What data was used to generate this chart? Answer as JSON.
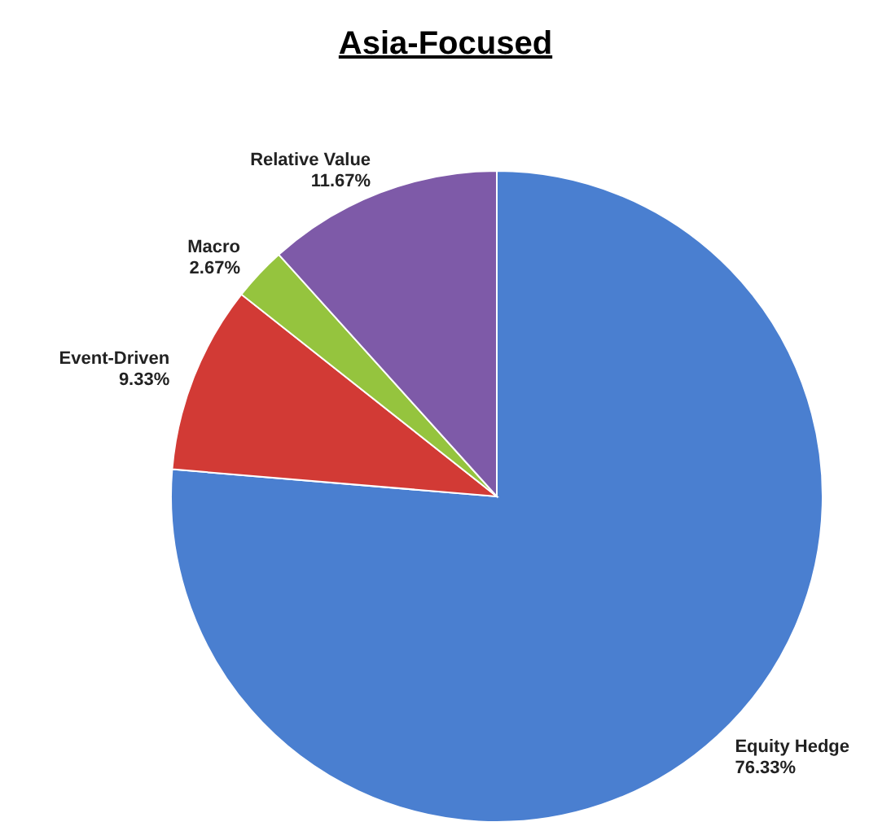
{
  "chart_data": {
    "type": "pie",
    "title": "Asia-Focused",
    "categories": [
      "Equity Hedge",
      "Event-Driven",
      "Macro",
      "Relative Value"
    ],
    "values": [
      76.33,
      9.33,
      2.67,
      11.67
    ],
    "value_labels": [
      "76.33%",
      "9.33%",
      "2.67%",
      "11.67%"
    ],
    "colors": [
      "#4a7fd0",
      "#d23a35",
      "#95c43e",
      "#7e5aa8"
    ]
  }
}
